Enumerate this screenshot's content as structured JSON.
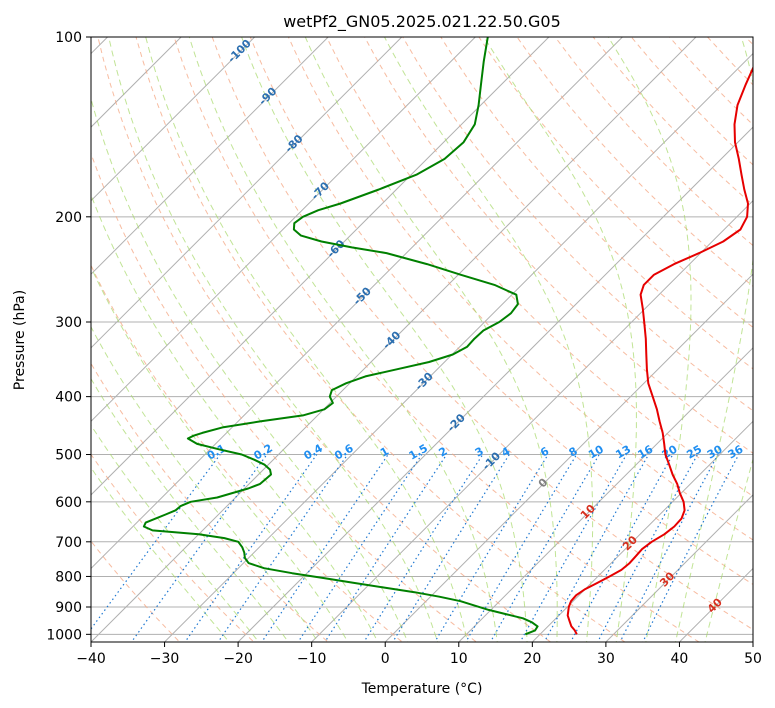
{
  "chart_data": {
    "type": "line",
    "title": "wetPf2_GN05.2025.021.22.50.G05",
    "xlabel": "Temperature (°C)",
    "ylabel": "Pressure (hPa)",
    "xlim": [
      -40,
      50
    ],
    "ylim": [
      1030,
      100
    ],
    "y_scale": "log",
    "grid": true,
    "x_ticks": [
      "−40",
      "−30",
      "−20",
      "−10",
      "0",
      "10",
      "20",
      "30",
      "40",
      "50"
    ],
    "y_ticks": [
      "100",
      "200",
      "300",
      "400",
      "500",
      "600",
      "700",
      "800",
      "900",
      "1000"
    ],
    "series": [
      {
        "color": "#e60000",
        "pressure": [
          1000,
          985,
          970,
          950,
          930,
          900,
          880,
          860,
          840,
          820,
          800,
          780,
          760,
          740,
          720,
          700,
          680,
          660,
          640,
          620,
          600,
          580,
          560,
          540,
          520,
          500,
          480,
          460,
          440,
          420,
          400,
          380,
          360,
          340,
          320,
          300,
          285,
          270,
          260,
          250,
          240,
          230,
          220,
          210,
          200,
          190,
          180,
          170,
          160,
          150,
          140,
          130,
          120,
          110,
          100
        ],
        "temperature": [
          25,
          24.2,
          23.2,
          22.2,
          21.2,
          20.2,
          19.7,
          19.6,
          20,
          20.8,
          21.6,
          22.3,
          22.5,
          22.4,
          22.3,
          22.6,
          23.3,
          23.6,
          23.5,
          22.8,
          21.5,
          19.8,
          18.2,
          16.3,
          14.5,
          12.6,
          11,
          9.3,
          7.3,
          5.3,
          3,
          0.6,
          -1.5,
          -3.6,
          -5.8,
          -8.3,
          -10.3,
          -12.5,
          -13.4,
          -13.4,
          -12.1,
          -10.2,
          -8.5,
          -7.8,
          -8.6,
          -10.3,
          -12.7,
          -15.1,
          -17.6,
          -20.4,
          -22.9,
          -25.1,
          -26.8,
          -28.5,
          -30.3
        ]
      },
      {
        "color": "#008000",
        "pressure": [
          1000,
          985,
          970,
          955,
          940,
          925,
          910,
          895,
          880,
          865,
          850,
          835,
          820,
          805,
          790,
          775,
          760,
          745,
          730,
          715,
          700,
          690,
          680,
          670,
          660,
          650,
          640,
          630,
          620,
          610,
          600,
          590,
          580,
          570,
          560,
          550,
          540,
          530,
          520,
          510,
          500,
          490,
          480,
          470,
          465,
          460,
          450,
          440,
          430,
          420,
          410,
          400,
          390,
          380,
          370,
          360,
          350,
          340,
          330,
          320,
          310,
          300,
          290,
          280,
          270,
          260,
          250,
          240,
          230,
          225,
          220,
          215,
          210,
          205,
          200,
          195,
          190,
          180,
          170,
          160,
          150,
          140,
          130,
          120,
          110,
          100
        ],
        "dewpoint": [
          18,
          18.8,
          18.6,
          17.3,
          15.5,
          12.6,
          9.7,
          7.2,
          4.7,
          1.2,
          -2.8,
          -7.5,
          -12.3,
          -17,
          -22,
          -26.5,
          -29.3,
          -30.5,
          -31.3,
          -32.3,
          -33.6,
          -36,
          -40,
          -46.8,
          -48.5,
          -48.8,
          -48,
          -47.2,
          -46.4,
          -46.3,
          -45.5,
          -42.5,
          -41,
          -39.5,
          -38.5,
          -38.4,
          -38.3,
          -39.1,
          -40.5,
          -42.6,
          -45,
          -48.8,
          -52.5,
          -54.5,
          -54.1,
          -53.3,
          -51.2,
          -47,
          -42,
          -39.9,
          -39.6,
          -40.9,
          -41.5,
          -40.5,
          -38.8,
          -35.5,
          -32.1,
          -29.9,
          -29,
          -29.1,
          -29,
          -28,
          -27.6,
          -27.9,
          -29.4,
          -33.7,
          -39.7,
          -45.7,
          -52.7,
          -58.2,
          -63.1,
          -66.7,
          -68.5,
          -69.3,
          -69,
          -67.8,
          -65.7,
          -62.4,
          -59.3,
          -57.6,
          -57.3,
          -58.2,
          -60.3,
          -62.8,
          -65.5,
          -68.3
        ]
      }
    ],
    "dry_adiabat_labels": [
      "-100",
      "-90",
      "-80",
      "-70",
      "-60",
      "-50",
      "-40",
      "-30",
      "-20",
      "-10",
      "0",
      "10",
      "20",
      "30",
      "40"
    ],
    "mixing_ratio_labels": [
      "0.1",
      "0.2",
      "0.4",
      "0.6",
      "1",
      "1.5",
      "2",
      "3",
      "4",
      "6",
      "8",
      "10",
      "13",
      "16",
      "20",
      "25",
      "30",
      "36"
    ],
    "colors": {
      "temperature_line": "#e60000",
      "dewpoint_line": "#008000",
      "isotherm": "#b0b0b0",
      "isobar": "#b0b0b0",
      "dry_adiabat": "#f4a582",
      "moist_adiabat": "#a6d96a",
      "mixing_ratio": "#1f78d1",
      "cold_label": "#2c6fb0",
      "warm_label": "#d7301f",
      "zero_label": "#808080",
      "mixing_label": "#1f8ef1"
    }
  }
}
